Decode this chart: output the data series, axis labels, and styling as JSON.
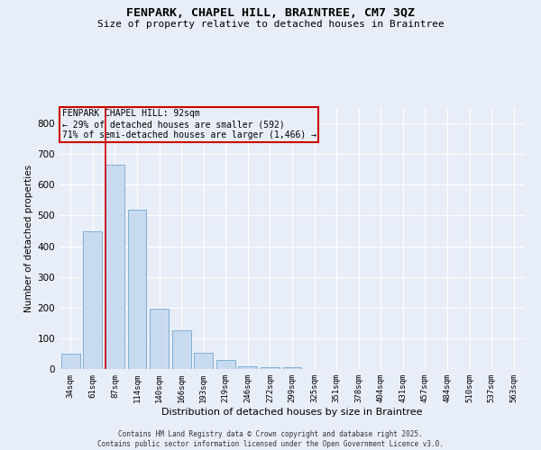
{
  "title": "FENPARK, CHAPEL HILL, BRAINTREE, CM7 3QZ",
  "subtitle": "Size of property relative to detached houses in Braintree",
  "xlabel": "Distribution of detached houses by size in Braintree",
  "ylabel": "Number of detached properties",
  "categories": [
    "34sqm",
    "61sqm",
    "87sqm",
    "114sqm",
    "140sqm",
    "166sqm",
    "193sqm",
    "219sqm",
    "246sqm",
    "272sqm",
    "299sqm",
    "325sqm",
    "351sqm",
    "378sqm",
    "404sqm",
    "431sqm",
    "457sqm",
    "484sqm",
    "510sqm",
    "537sqm",
    "563sqm"
  ],
  "values": [
    50,
    448,
    665,
    520,
    197,
    127,
    52,
    30,
    10,
    6,
    5,
    0,
    0,
    0,
    0,
    0,
    0,
    0,
    0,
    0,
    0
  ],
  "bar_color": "#c8daf0",
  "bar_edge_color": "#7fafd4",
  "property_line_bin": 2,
  "annotation_line1": "FENPARK CHAPEL HILL: 92sqm",
  "annotation_line2": "← 29% of detached houses are smaller (592)",
  "annotation_line3": "71% of semi-detached houses are larger (1,466) →",
  "annotation_box_color": "#cc0000",
  "ylim": [
    0,
    850
  ],
  "yticks": [
    0,
    100,
    200,
    300,
    400,
    500,
    600,
    700,
    800
  ],
  "background_color": "#e8eef8",
  "grid_color": "#ffffff",
  "footer_line1": "Contains HM Land Registry data © Crown copyright and database right 2025.",
  "footer_line2": "Contains public sector information licensed under the Open Government Licence v3.0."
}
